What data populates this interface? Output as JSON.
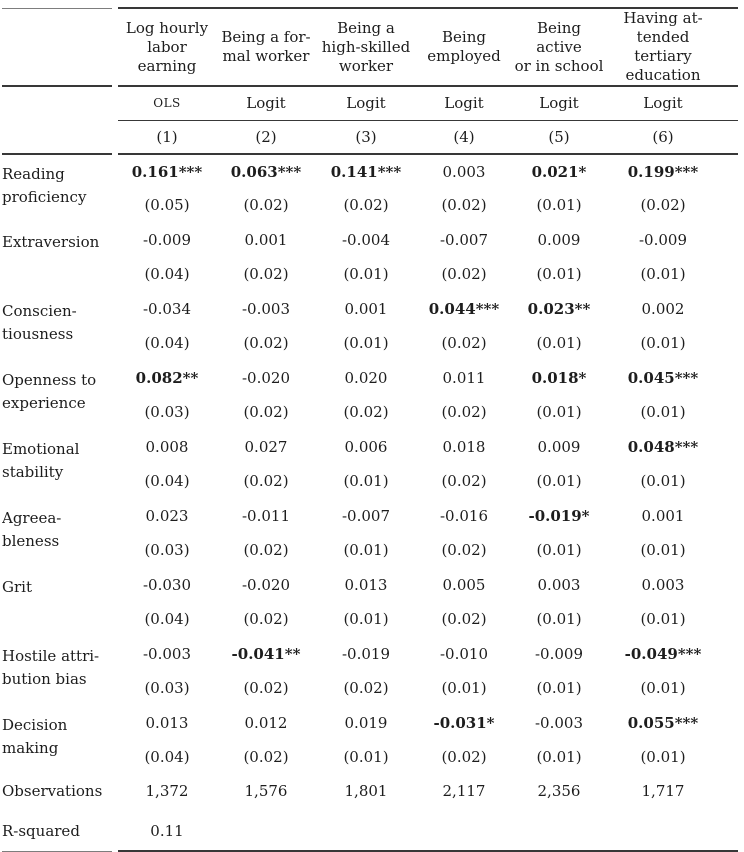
{
  "colors": {
    "text": "#1d1d1d",
    "rule": "#383838",
    "background": "#ffffff"
  },
  "table": {
    "columns": [
      {
        "title": "Log hourly\nlabor earning",
        "model": "OLS",
        "num": "(1)"
      },
      {
        "title": "Being a for-\nmal worker",
        "model": "Logit",
        "num": "(2)"
      },
      {
        "title": "Being a\nhigh-skilled\nworker",
        "model": "Logit",
        "num": "(3)"
      },
      {
        "title": "Being\nemployed",
        "model": "Logit",
        "num": "(4)"
      },
      {
        "title": "Being active\nor in school",
        "model": "Logit",
        "num": "(5)"
      },
      {
        "title": "Having at-\ntended tertiary\neducation",
        "model": "Logit",
        "num": "(6)"
      }
    ],
    "predictors": [
      {
        "label": "Reading\nproficiency",
        "coefs": [
          "0.161***",
          "0.063***",
          "0.141***",
          "0.003",
          "0.021*",
          "0.199***"
        ],
        "bold": [
          1,
          1,
          1,
          0,
          1,
          1
        ],
        "ses": [
          "(0.05)",
          "(0.02)",
          "(0.02)",
          "(0.02)",
          "(0.01)",
          "(0.02)"
        ]
      },
      {
        "label": "Extraversion",
        "coefs": [
          "-0.009",
          "0.001",
          "-0.004",
          "-0.007",
          "0.009",
          "-0.009"
        ],
        "bold": [
          0,
          0,
          0,
          0,
          0,
          0
        ],
        "ses": [
          "(0.04)",
          "(0.02)",
          "(0.01)",
          "(0.02)",
          "(0.01)",
          "(0.01)"
        ]
      },
      {
        "label": "Conscien-\ntiousness",
        "coefs": [
          "-0.034",
          "-0.003",
          "0.001",
          "0.044***",
          "0.023**",
          "0.002"
        ],
        "bold": [
          0,
          0,
          0,
          1,
          1,
          0
        ],
        "ses": [
          "(0.04)",
          "(0.02)",
          "(0.01)",
          "(0.02)",
          "(0.01)",
          "(0.01)"
        ]
      },
      {
        "label": "Openness to\nexperience",
        "coefs": [
          "0.082**",
          "-0.020",
          "0.020",
          "0.011",
          "0.018*",
          "0.045***"
        ],
        "bold": [
          1,
          0,
          0,
          0,
          1,
          1
        ],
        "ses": [
          "(0.03)",
          "(0.02)",
          "(0.02)",
          "(0.02)",
          "(0.01)",
          "(0.01)"
        ]
      },
      {
        "label": "Emotional\nstability",
        "coefs": [
          "0.008",
          "0.027",
          "0.006",
          "0.018",
          "0.009",
          "0.048***"
        ],
        "bold": [
          0,
          0,
          0,
          0,
          0,
          1
        ],
        "ses": [
          "(0.04)",
          "(0.02)",
          "(0.01)",
          "(0.02)",
          "(0.01)",
          "(0.01)"
        ]
      },
      {
        "label": "Agreea-\nbleness",
        "coefs": [
          "0.023",
          "-0.011",
          "-0.007",
          "-0.016",
          "-0.019*",
          "0.001"
        ],
        "bold": [
          0,
          0,
          0,
          0,
          1,
          0
        ],
        "ses": [
          "(0.03)",
          "(0.02)",
          "(0.01)",
          "(0.02)",
          "(0.01)",
          "(0.01)"
        ]
      },
      {
        "label": "Grit",
        "coefs": [
          "-0.030",
          "-0.020",
          "0.013",
          "0.005",
          "0.003",
          "0.003"
        ],
        "bold": [
          0,
          0,
          0,
          0,
          0,
          0
        ],
        "ses": [
          "(0.04)",
          "(0.02)",
          "(0.01)",
          "(0.02)",
          "(0.01)",
          "(0.01)"
        ]
      },
      {
        "label": "Hostile attri-\nbution bias",
        "coefs": [
          "-0.003",
          "-0.041**",
          "-0.019",
          "-0.010",
          "-0.009",
          "-0.049***"
        ],
        "bold": [
          0,
          1,
          0,
          0,
          0,
          1
        ],
        "ses": [
          "(0.03)",
          "(0.02)",
          "(0.02)",
          "(0.01)",
          "(0.01)",
          "(0.01)"
        ]
      },
      {
        "label": "Decision\nmaking",
        "coefs": [
          "0.013",
          "0.012",
          "0.019",
          "-0.031*",
          "-0.003",
          "0.055***"
        ],
        "bold": [
          0,
          0,
          0,
          1,
          0,
          1
        ],
        "ses": [
          "(0.04)",
          "(0.02)",
          "(0.01)",
          "(0.02)",
          "(0.01)",
          "(0.01)"
        ]
      }
    ],
    "footer": [
      {
        "label": "Observations",
        "values": [
          "1,372",
          "1,576",
          "1,801",
          "2,117",
          "2,356",
          "1,717"
        ]
      },
      {
        "label": "R-squared",
        "values": [
          "0.11",
          "",
          "",
          "",
          "",
          ""
        ]
      }
    ]
  }
}
